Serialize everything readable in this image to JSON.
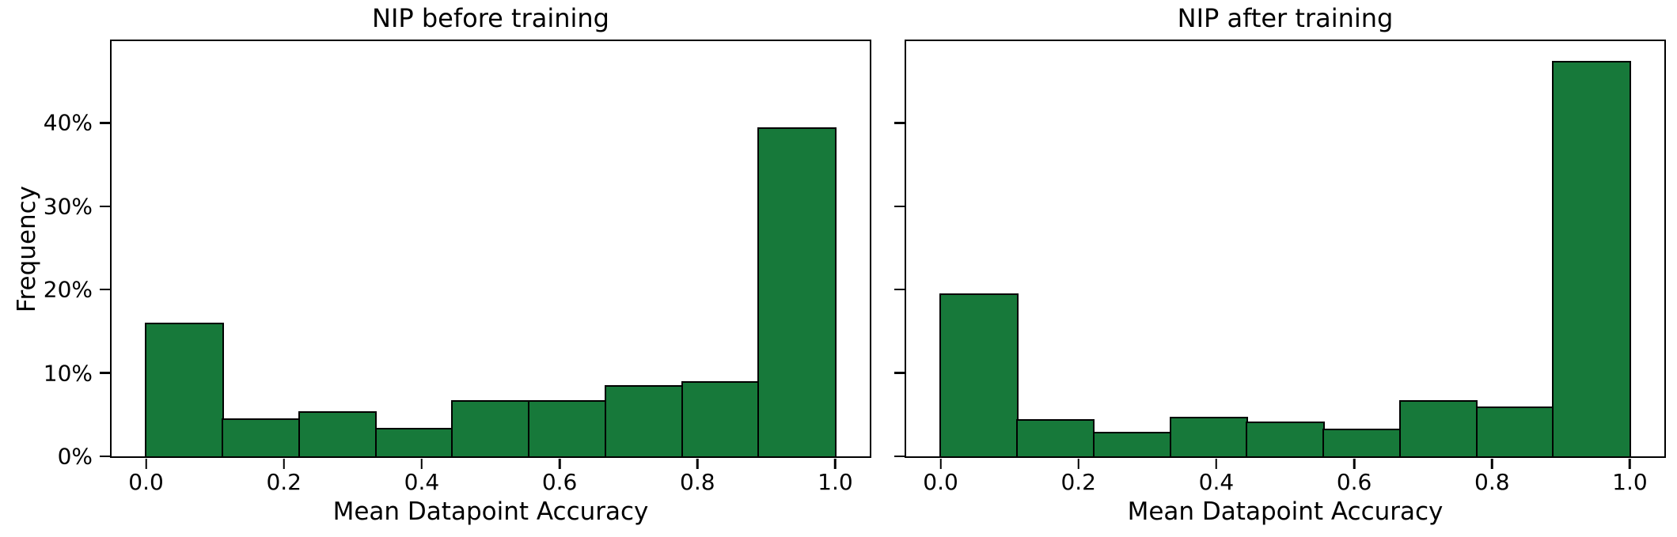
{
  "figure": {
    "background_color": "#ffffff",
    "text_color": "#000000"
  },
  "chart_data": [
    {
      "type": "bar",
      "subtype": "histogram",
      "title": "NIP before training",
      "xlabel": "Mean Datapoint Accuracy",
      "ylabel": "Frequency",
      "bin_edges": [
        0.0,
        0.111,
        0.222,
        0.333,
        0.444,
        0.556,
        0.667,
        0.778,
        0.889,
        1.0
      ],
      "values_percent": [
        16.0,
        4.6,
        5.4,
        3.4,
        6.7,
        6.7,
        8.5,
        9.0,
        39.5
      ],
      "xlim": [
        -0.05,
        1.05
      ],
      "ylim": [
        0,
        49.8
      ],
      "grid": false,
      "legend": null,
      "xticks": [
        {
          "value": 0.0,
          "label": "0.0"
        },
        {
          "value": 0.2,
          "label": "0.2"
        },
        {
          "value": 0.4,
          "label": "0.4"
        },
        {
          "value": 0.6,
          "label": "0.6"
        },
        {
          "value": 0.8,
          "label": "0.8"
        },
        {
          "value": 1.0,
          "label": "1.0"
        }
      ],
      "yticks": [
        {
          "value": 0,
          "label": "0%"
        },
        {
          "value": 10,
          "label": "10%"
        },
        {
          "value": 20,
          "label": "20%"
        },
        {
          "value": 30,
          "label": "30%"
        },
        {
          "value": 40,
          "label": "40%"
        }
      ],
      "show_y_tick_labels": true,
      "show_y_axis_label": true,
      "bar_color": "#17793A",
      "bar_edge_color": "#000000"
    },
    {
      "type": "bar",
      "subtype": "histogram",
      "title": "NIP after training",
      "xlabel": "Mean Datapoint Accuracy",
      "ylabel": "",
      "bin_edges": [
        0.0,
        0.111,
        0.222,
        0.333,
        0.444,
        0.556,
        0.667,
        0.778,
        0.889,
        1.0
      ],
      "values_percent": [
        19.5,
        4.5,
        2.9,
        4.7,
        4.2,
        3.3,
        6.7,
        6.0,
        47.4
      ],
      "xlim": [
        -0.05,
        1.05
      ],
      "ylim": [
        0,
        49.8
      ],
      "grid": false,
      "legend": null,
      "xticks": [
        {
          "value": 0.0,
          "label": "0.0"
        },
        {
          "value": 0.2,
          "label": "0.2"
        },
        {
          "value": 0.4,
          "label": "0.4"
        },
        {
          "value": 0.6,
          "label": "0.6"
        },
        {
          "value": 0.8,
          "label": "0.8"
        },
        {
          "value": 1.0,
          "label": "1.0"
        }
      ],
      "yticks": [
        {
          "value": 0,
          "label": "0%"
        },
        {
          "value": 10,
          "label": "10%"
        },
        {
          "value": 20,
          "label": "20%"
        },
        {
          "value": 30,
          "label": "30%"
        },
        {
          "value": 40,
          "label": "40%"
        }
      ],
      "show_y_tick_labels": false,
      "show_y_axis_label": false,
      "bar_color": "#17793A",
      "bar_edge_color": "#000000"
    }
  ]
}
